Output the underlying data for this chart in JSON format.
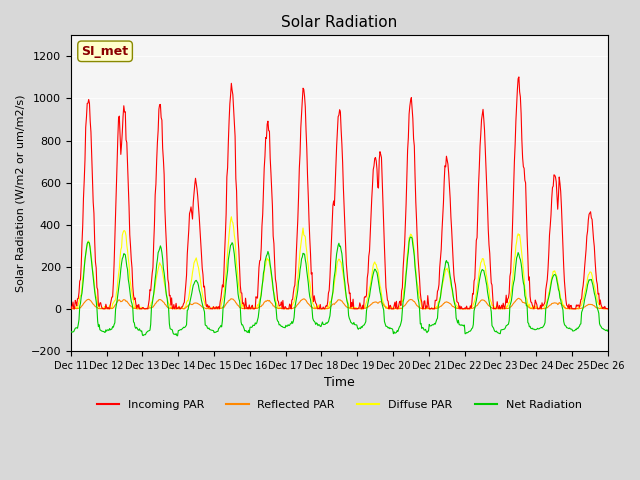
{
  "title": "Solar Radiation",
  "ylabel": "Solar Radiation (W/m2 or um/m2/s)",
  "xlabel": "Time",
  "ylim": [
    -200,
    1300
  ],
  "yticks": [
    -200,
    0,
    200,
    400,
    600,
    800,
    1000,
    1200
  ],
  "background_color": "#e8e8e8",
  "plot_bg_color": "#f0f0f0",
  "colors": {
    "incoming": "#ff0000",
    "reflected": "#ff8800",
    "diffuse": "#ffff00",
    "net": "#00cc00"
  },
  "legend_labels": [
    "Incoming PAR",
    "Reflected PAR",
    "Diffuse PAR",
    "Net Radiation"
  ],
  "station_label": "SI_met",
  "x_tick_labels": [
    "Dec 11",
    "Dec 12",
    "Dec 13",
    "Dec 14",
    "Dec 15",
    "Dec 16",
    "Dec 17",
    "Dec 18",
    "Dec 19",
    "Dec 20",
    "Dec 21",
    "Dec 22",
    "Dec 23",
    "Dec 24",
    "Dec 25",
    "Dec 26"
  ],
  "num_days": 15,
  "pts_per_day": 48
}
